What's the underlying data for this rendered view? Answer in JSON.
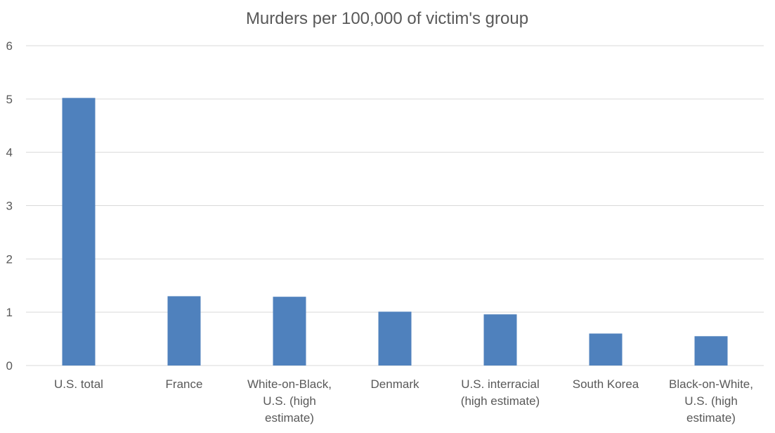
{
  "chart_data": {
    "type": "bar",
    "title": "Murders per 100,000 of victim's group",
    "categories": [
      [
        "U.S. total"
      ],
      [
        "France"
      ],
      [
        "White-on-Black,",
        "U.S. (high",
        "estimate)"
      ],
      [
        "Denmark"
      ],
      [
        "U.S. interracial",
        "(high estimate)"
      ],
      [
        "South Korea"
      ],
      [
        "Black-on-White,",
        "U.S. (high",
        "estimate)"
      ]
    ],
    "values": [
      5.02,
      1.3,
      1.29,
      1.01,
      0.96,
      0.6,
      0.55
    ],
    "ylim": [
      0,
      6
    ],
    "yticks": [
      "0",
      "1",
      "2",
      "3",
      "4",
      "5",
      "6"
    ],
    "xlabel": "",
    "ylabel": "",
    "grid": true,
    "bar_color": "#4f81bd",
    "grid_color": "#d9d9d9"
  }
}
